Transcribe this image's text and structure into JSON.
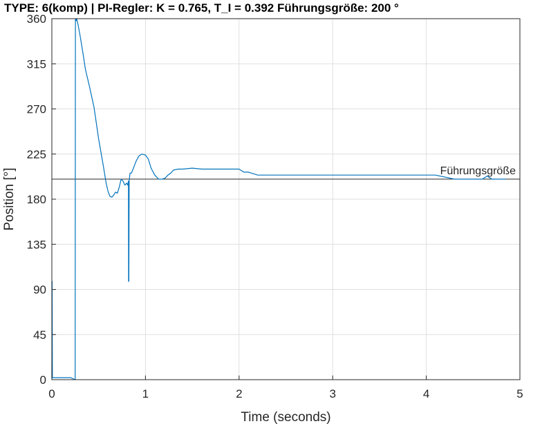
{
  "chart_data": {
    "type": "line",
    "title": "TYPE: 6(komp) | PI-Regler: K = 0.765, T_I = 0.392    Führungsgröße: 200 °",
    "xlabel": "Time (seconds)",
    "ylabel": "Position [°]",
    "xlim": [
      0,
      5
    ],
    "ylim": [
      0,
      360
    ],
    "xticks": [
      0,
      1,
      2,
      3,
      4,
      5
    ],
    "yticks": [
      0,
      45,
      90,
      135,
      180,
      225,
      270,
      315,
      360
    ],
    "grid": true,
    "reference_line": {
      "y": 200,
      "label": "Führungsgröße",
      "color": "#262626"
    },
    "series": [
      {
        "color": "#0072bd",
        "x": [
          0,
          0.003,
          0.006,
          0.01,
          0.03,
          0.1,
          0.15,
          0.2,
          0.249,
          0.252,
          0.26,
          0.265,
          0.28,
          0.3,
          0.33,
          0.36,
          0.4,
          0.45,
          0.5,
          0.55,
          0.58,
          0.6,
          0.62,
          0.64,
          0.66,
          0.68,
          0.7,
          0.72,
          0.74,
          0.76,
          0.78,
          0.8,
          0.81,
          0.818,
          0.82,
          0.823,
          0.826,
          0.83,
          0.835,
          0.85,
          0.88,
          0.9,
          0.93,
          0.96,
          1.0,
          1.03,
          1.06,
          1.1,
          1.14,
          1.18,
          1.21,
          1.24,
          1.27,
          1.3,
          1.35,
          1.4,
          1.5,
          1.6,
          1.7,
          1.8,
          1.9,
          2.0,
          2.05,
          2.1,
          2.2,
          2.3,
          2.4,
          2.5,
          2.6,
          2.7,
          2.8,
          2.9,
          3.0,
          3.1,
          3.2,
          3.3,
          3.4,
          3.5,
          3.6,
          3.7,
          3.8,
          3.9,
          4.0,
          4.1,
          4.2,
          4.3,
          4.4,
          4.5,
          4.6,
          4.65,
          4.7,
          4.8,
          4.85
        ],
        "y": [
          0,
          98,
          2,
          2,
          2,
          2,
          2,
          2,
          0,
          360,
          358,
          360,
          354,
          344,
          327,
          309,
          293,
          272,
          240,
          213,
          196,
          188,
          183,
          182,
          184,
          187,
          186,
          192,
          200,
          198,
          194,
          196,
          194,
          198,
          98,
          98,
          198,
          202,
          206,
          206,
          213,
          218,
          223,
          225,
          224,
          220,
          211,
          204,
          200,
          200,
          201,
          204,
          206,
          209,
          210,
          210,
          211,
          210,
          210,
          210,
          210,
          210,
          207,
          207,
          204,
          204,
          204,
          204,
          204,
          204,
          204,
          204,
          204,
          204,
          204,
          204,
          204,
          204,
          204,
          204,
          204,
          204,
          204,
          204,
          202,
          200,
          200,
          200,
          200,
          203,
          200,
          200,
          200
        ]
      }
    ]
  }
}
